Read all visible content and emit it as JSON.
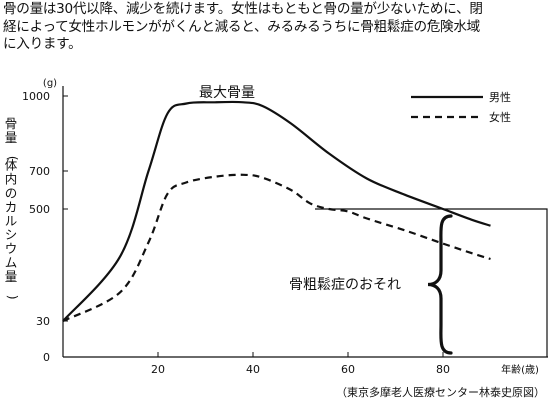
{
  "intro": {
    "lines": [
      "骨の量は30代以降、減少を続けます。女性はもともと骨の量が少ないために、閉",
      "経によって女性ホルモンががくんと減ると、みるみるうちに骨粗鬆症の危険水域",
      "に入ります。"
    ]
  },
  "source_note": "（東京多摩老人医療センター林泰史原図）",
  "colors": {
    "line": "#111111",
    "background": "#ffffff"
  },
  "chart_data": {
    "type": "line",
    "xlabel": "年齢(歳)",
    "ylabel": "骨量(体内のカルシウム量)",
    "y_unit": "(g)",
    "x_ticks": [
      20,
      40,
      60,
      80
    ],
    "y_ticks": [
      0,
      30,
      500,
      700,
      1000
    ],
    "y_scale": "nonlinear (ticks at 0, 30, 500, 700, 1000)",
    "xlim": [
      0,
      100
    ],
    "grid": false,
    "legend_position": "top-right",
    "annotations": {
      "peak_label": "最大骨量",
      "risk_label": "骨粗鬆症のおそれ",
      "risk_threshold": 500
    },
    "series": [
      {
        "name": "男性",
        "style": "solid",
        "x": [
          0,
          12,
          18,
          22,
          26,
          32,
          38,
          42,
          48,
          56,
          64,
          72,
          80,
          86,
          90
        ],
        "y": [
          30,
          300,
          700,
          930,
          970,
          975,
          975,
          960,
          890,
          770,
          660,
          575,
          500,
          455,
          430
        ]
      },
      {
        "name": "女性",
        "style": "dashed",
        "x": [
          0,
          12,
          18,
          22,
          26,
          32,
          38,
          42,
          48,
          52,
          56,
          60,
          64,
          72,
          80,
          86,
          90
        ],
        "y": [
          30,
          150,
          360,
          580,
          640,
          670,
          680,
          665,
          600,
          530,
          500,
          490,
          460,
          410,
          355,
          315,
          290
        ]
      }
    ]
  }
}
